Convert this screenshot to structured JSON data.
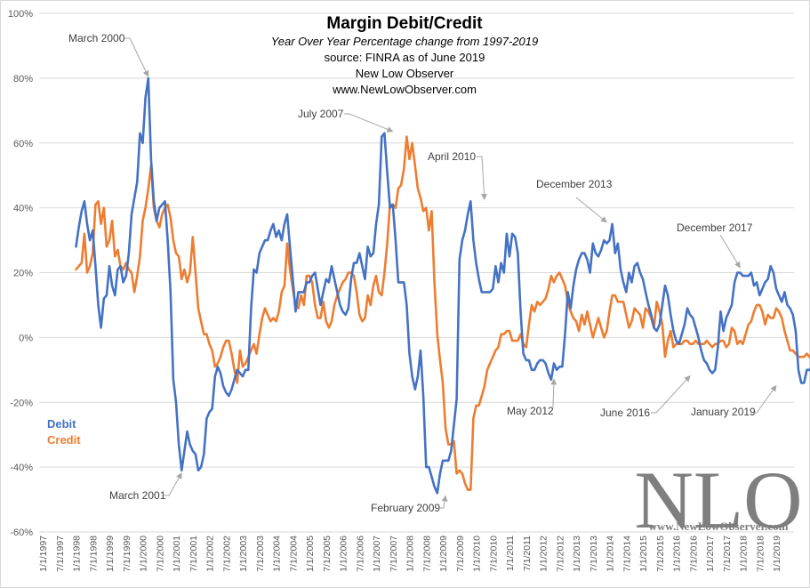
{
  "chart_data": {
    "type": "line",
    "title": "Margin Debit/Credit",
    "subtitle_lines": [
      "Year Over Year Percentage change from 1997-2019",
      "source: FINRA as of June 2019",
      "New Low Observer",
      "www.NewLowObserver.com"
    ],
    "xlabel": "",
    "ylabel": "",
    "ylim": [
      -60,
      100
    ],
    "y_ticks": [
      -60,
      -40,
      -20,
      0,
      20,
      40,
      60,
      80,
      100
    ],
    "y_tick_labels": [
      "-60%",
      "-40%",
      "-20%",
      "0%",
      "20%",
      "40%",
      "60%",
      "80%",
      "100%"
    ],
    "x_start": "1997-01",
    "x_tick_labels": [
      "1/1/1997",
      "7/1/1997",
      "1/1/1998",
      "7/1/1998",
      "1/1/1999",
      "7/1/1999",
      "1/1/2000",
      "7/1/2000",
      "1/1/2001",
      "7/1/2001",
      "1/1/2002",
      "7/1/2002",
      "1/1/2003",
      "7/1/2003",
      "1/1/2004",
      "7/1/2004",
      "1/1/2005",
      "7/1/2005",
      "1/1/2006",
      "7/1/2006",
      "1/1/2007",
      "7/1/2007",
      "1/1/2008",
      "7/1/2008",
      "1/1/2009",
      "7/1/2009",
      "1/1/2010",
      "7/1/2010",
      "1/1/2011",
      "7/1/2011",
      "1/1/2012",
      "7/1/2012",
      "1/1/2013",
      "7/1/2013",
      "1/1/2014",
      "7/1/2014",
      "1/1/2015",
      "7/1/2015",
      "1/1/2016",
      "7/1/2016",
      "1/1/2017",
      "7/1/2017",
      "1/1/2018",
      "7/1/2018",
      "1/1/2019"
    ],
    "grid": true,
    "legend_position": "left",
    "series_start": "1998-01",
    "series": [
      {
        "name": "Debit",
        "color": "#4472C4",
        "values": [
          28,
          34,
          39,
          42,
          35,
          30,
          33,
          22,
          10,
          3,
          12,
          13,
          22,
          16,
          13,
          21,
          22,
          17,
          19,
          26,
          38,
          43,
          48,
          63,
          60,
          74,
          80,
          55,
          42,
          36,
          40,
          41,
          42,
          30,
          14,
          -13,
          -20,
          -33,
          -41,
          -35,
          -29,
          -33,
          -35,
          -36,
          -41,
          -40,
          -36,
          -25,
          -23,
          -22,
          -12,
          -9,
          -11,
          -15,
          -17,
          -18,
          -16,
          -13,
          -10,
          -11,
          -12,
          -10,
          -10,
          9,
          21,
          20,
          26,
          28,
          30,
          30,
          33,
          35,
          31,
          33,
          30,
          35,
          38,
          28,
          18,
          8,
          14,
          14,
          14,
          17,
          17,
          19,
          20,
          15,
          10,
          14,
          18,
          17,
          22,
          18,
          14,
          10,
          8,
          7,
          9,
          18,
          23,
          23,
          26,
          22,
          18,
          28,
          25,
          26,
          35,
          41,
          62,
          63,
          51,
          40,
          41,
          30,
          17,
          17,
          17,
          10,
          -5,
          -12,
          -16,
          -12,
          -4,
          -18,
          -40,
          -40,
          -43,
          -46,
          -48,
          -42,
          -38,
          -38,
          -38,
          -35,
          -27,
          -19,
          24,
          30,
          33,
          38,
          42,
          30,
          23,
          18,
          14,
          14,
          14,
          14,
          15,
          22,
          17,
          23,
          20,
          32,
          25,
          32,
          31,
          26,
          8,
          -5,
          -7,
          -7,
          -10,
          -10,
          -8,
          -7,
          -7,
          -8,
          -11,
          -13,
          -8,
          -10,
          -9,
          -9,
          1,
          14,
          9,
          16,
          21,
          24,
          26,
          26,
          24,
          20,
          29,
          26,
          25,
          27,
          30,
          29,
          30,
          35,
          26,
          29,
          21,
          17,
          14,
          20,
          17,
          22,
          23,
          20,
          18,
          14,
          10,
          7,
          3,
          2,
          4,
          10,
          16,
          13,
          7,
          2,
          -1,
          -2,
          1,
          4,
          9,
          7,
          6,
          3,
          0,
          -4,
          -7,
          -8,
          -10,
          -11,
          -10,
          -3,
          8,
          2,
          6,
          8,
          10,
          17,
          20,
          20,
          19,
          19,
          19,
          20,
          16,
          17,
          13,
          15,
          17,
          18,
          22,
          20,
          15,
          13,
          11,
          14,
          10,
          9,
          7,
          2,
          -10,
          -14,
          -14,
          -10,
          -10,
          -9,
          -15,
          -12,
          -8
        ]
      },
      {
        "name": "Credit",
        "color": "#ED7D31",
        "values": [
          21,
          22,
          23,
          32,
          20,
          22,
          26,
          41,
          42,
          35,
          40,
          28,
          30,
          36,
          25,
          27,
          22,
          21,
          23,
          21,
          20,
          14,
          19,
          25,
          36,
          40,
          46,
          53,
          40,
          36,
          34,
          38,
          40,
          41,
          37,
          30,
          26,
          25,
          18,
          21,
          17,
          20,
          31,
          20,
          9,
          5,
          1,
          1,
          -2,
          -4,
          -9,
          -8,
          -6,
          -3,
          -1,
          -1,
          -5,
          -10,
          -14,
          -4,
          -9,
          -8,
          -6,
          -4,
          -2,
          -5,
          1,
          6,
          9,
          7,
          5,
          6,
          5,
          8,
          14,
          16,
          29,
          21,
          15,
          10,
          9,
          13,
          10,
          19,
          19,
          17,
          10,
          6,
          6,
          11,
          5,
          3,
          5,
          10,
          13,
          15,
          17,
          18,
          20,
          20,
          19,
          14,
          7,
          5,
          6,
          13,
          10,
          16,
          19,
          14,
          13,
          20,
          29,
          41,
          41,
          40,
          46,
          47,
          52,
          62,
          55,
          60,
          53,
          46,
          43,
          39,
          40,
          33,
          39,
          17,
          1,
          -7,
          -14,
          -28,
          -33,
          -33,
          -32,
          -42,
          -41,
          -42,
          -45,
          -47,
          -47,
          -25,
          -21,
          -21,
          -18,
          -15,
          -10,
          -8,
          -6,
          -4,
          -3,
          1,
          1,
          2,
          2,
          -1,
          -1,
          -1,
          1,
          -2,
          -3,
          4,
          10,
          8,
          11,
          10,
          11,
          12,
          15,
          19,
          17,
          19,
          20,
          18,
          16,
          11,
          8,
          6,
          5,
          2,
          7,
          4,
          8,
          4,
          0,
          3,
          6,
          3,
          0,
          2,
          8,
          13,
          13,
          11,
          11,
          11,
          7,
          3,
          5,
          9,
          8,
          7,
          3,
          9,
          8,
          6,
          3,
          11,
          8,
          4,
          -6,
          -1,
          2,
          -3,
          -2,
          -2,
          -2,
          -1,
          -1,
          -2,
          -2,
          -1,
          -2,
          -2,
          -2,
          -1,
          -2,
          -3,
          -2,
          -2,
          -1,
          -1,
          -3,
          -2,
          3,
          2,
          -2,
          -1,
          -2,
          1,
          4,
          5,
          8,
          10,
          10,
          8,
          4,
          7,
          6,
          6,
          9,
          8,
          6,
          2,
          -1,
          -4,
          -4,
          -5,
          -6,
          -6,
          -6,
          -5,
          -6,
          -7,
          -7,
          -7,
          -7,
          -8,
          -7,
          -8,
          -9,
          -8,
          -9,
          -7,
          -4,
          -7,
          -10,
          -3,
          -5,
          -7,
          -5,
          -3,
          -4,
          -5,
          -5,
          -3,
          -4,
          -3
        ]
      }
    ],
    "legend": [
      {
        "label": "Debit",
        "color": "#4472C4"
      },
      {
        "label": "Credit",
        "color": "#ED7D31"
      }
    ],
    "annotations": [
      {
        "label": "March 2000",
        "target_date": "2000-03",
        "target_value": 80
      },
      {
        "label": "March 2001",
        "target_date": "2001-03",
        "target_value": -41
      },
      {
        "label": "July 2007",
        "target_date": "2007-07",
        "target_value": 63
      },
      {
        "label": "February 2009",
        "target_date": "2009-02",
        "target_value": -48
      },
      {
        "label": "April 2010",
        "target_date": "2010-04",
        "target_value": 42
      },
      {
        "label": "May 2012",
        "target_date": "2012-05",
        "target_value": -12
      },
      {
        "label": "December 2013",
        "target_date": "2013-12",
        "target_value": 35
      },
      {
        "label": "June 2016",
        "target_date": "2016-06",
        "target_value": -11
      },
      {
        "label": "December 2017",
        "target_date": "2017-12",
        "target_value": 21
      },
      {
        "label": "January 2019",
        "target_date": "2019-01",
        "target_value": -14
      }
    ]
  },
  "watermark": {
    "logo_text": "NLO",
    "url_text": "www.NewLowObserver.com"
  }
}
